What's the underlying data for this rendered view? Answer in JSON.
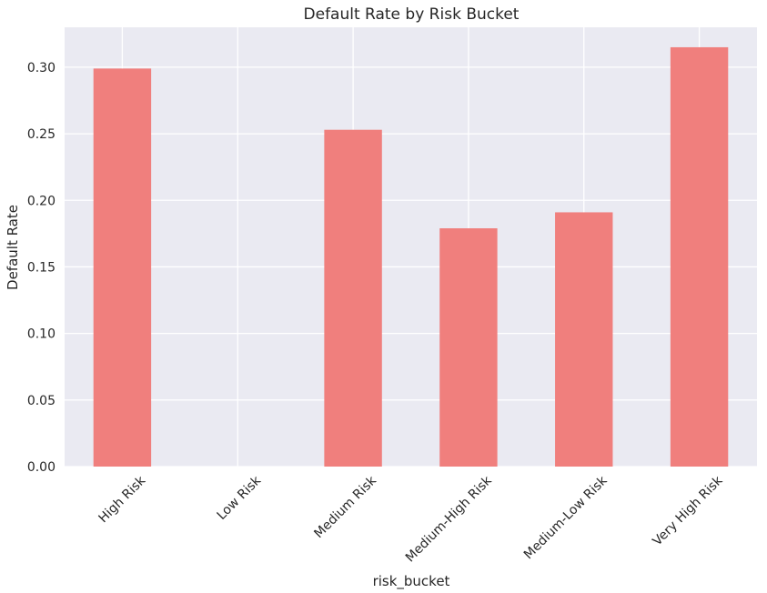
{
  "chart_data": {
    "type": "bar",
    "title": "Default Rate by Risk Bucket",
    "xlabel": "risk_bucket",
    "ylabel": "Default Rate",
    "categories": [
      "High Risk",
      "Low Risk",
      "Medium Risk",
      "Medium-High Risk",
      "Medium-Low Risk",
      "Very High Risk"
    ],
    "values": [
      0.299,
      0.0,
      0.253,
      0.179,
      0.191,
      0.315
    ],
    "ylim": [
      0,
      0.33
    ],
    "yticks": [
      "0.00",
      "0.05",
      "0.10",
      "0.15",
      "0.20",
      "0.25",
      "0.30"
    ],
    "grid": true,
    "legend": "none",
    "colors": {
      "bar": "#F07F7D",
      "plot_background": "#EAEAF2",
      "grid": "#FFFFFF"
    }
  }
}
